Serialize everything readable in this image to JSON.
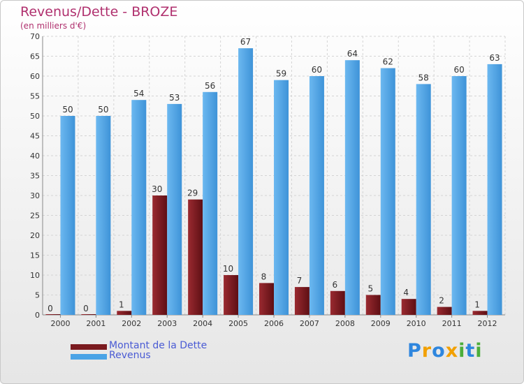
{
  "header": {
    "title": "Revenus/Dette - BROZE",
    "subtitle": "(en milliers d'€)"
  },
  "colors": {
    "debt": "#7a1a1f",
    "revenue": "#4aa3e6",
    "title": "#b0306e",
    "legend_text": "#4a5bd4"
  },
  "legend": {
    "position": "bottom-left",
    "items": [
      {
        "label": "Montant de la Dette",
        "color": "#7a1a1f"
      },
      {
        "label": "Revenus",
        "color": "#4aa3e6"
      }
    ]
  },
  "logo": {
    "text": "Proxiti"
  },
  "chart_data": {
    "type": "bar",
    "categories": [
      "2000",
      "2001",
      "2002",
      "2003",
      "2004",
      "2005",
      "2006",
      "2007",
      "2008",
      "2009",
      "2010",
      "2011",
      "2012"
    ],
    "series": [
      {
        "name": "Montant de la Dette",
        "values": [
          0,
          0,
          1,
          30,
          29,
          10,
          8,
          7,
          6,
          5,
          4,
          2,
          1
        ]
      },
      {
        "name": "Revenus",
        "values": [
          50,
          50,
          54,
          53,
          56,
          67,
          59,
          60,
          64,
          62,
          58,
          60,
          63
        ]
      }
    ],
    "title": "Revenus/Dette - BROZE",
    "subtitle": "(en milliers d'€)",
    "ylim": [
      0,
      70
    ],
    "yticks": [
      0,
      5,
      10,
      15,
      20,
      25,
      30,
      35,
      40,
      45,
      50,
      55,
      60,
      65,
      70
    ],
    "grid": true
  }
}
